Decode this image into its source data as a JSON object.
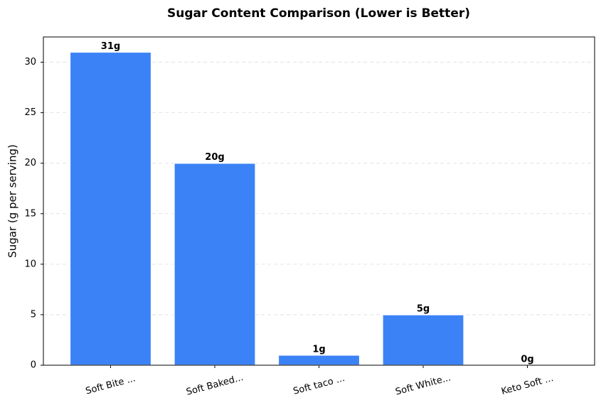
{
  "chart_data": {
    "type": "bar",
    "title": "Sugar Content Comparison (Lower is Better)",
    "y_label": "Sugar (g per serving)",
    "categories": [
      "Soft Bite ...",
      "Soft Baked...",
      "Soft taco ...",
      "Soft White...",
      "Keto Soft ..."
    ],
    "values": [
      31,
      20,
      1,
      5,
      0
    ],
    "value_labels": [
      "31g",
      "20g",
      "1g",
      "5g",
      "0g"
    ],
    "color": "#3b82f6",
    "ylim": [
      0,
      32.5
    ],
    "yticks": [
      0,
      5,
      10,
      15,
      20,
      25,
      30
    ],
    "grid": true
  }
}
